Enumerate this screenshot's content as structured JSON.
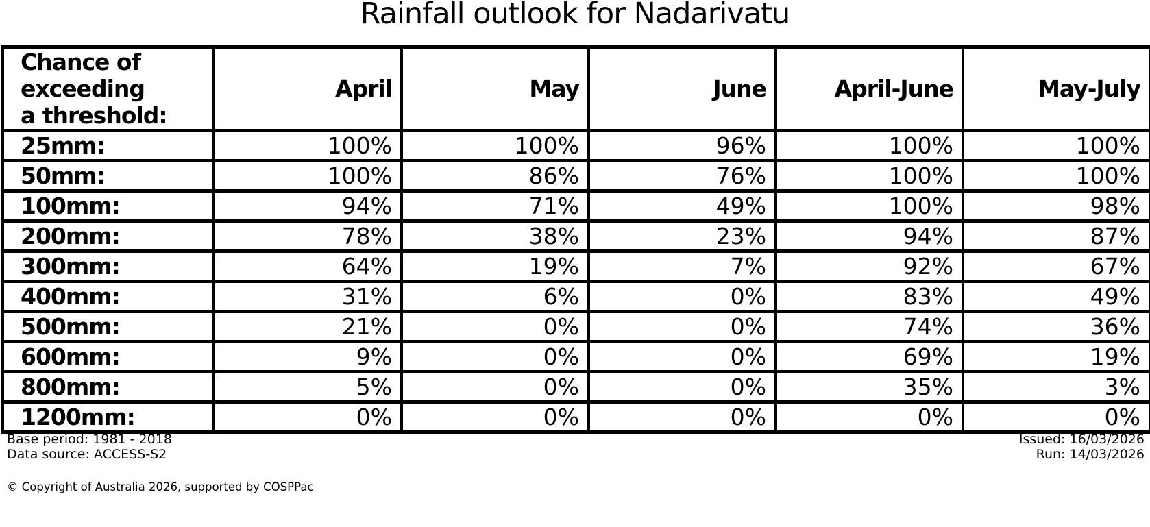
{
  "title": "Rainfall outlook for Nadarivatu",
  "chart_data": {
    "type": "table",
    "title": "Rainfall outlook for Nadarivatu",
    "corner_header": "Chance of\nexceeding\na threshold:",
    "columns": [
      "April",
      "May",
      "June",
      "April-June",
      "May-July"
    ],
    "rows": [
      {
        "threshold": "25mm:",
        "values": [
          "100%",
          "100%",
          "96%",
          "100%",
          "100%"
        ]
      },
      {
        "threshold": "50mm:",
        "values": [
          "100%",
          "86%",
          "76%",
          "100%",
          "100%"
        ]
      },
      {
        "threshold": "100mm:",
        "values": [
          "94%",
          "71%",
          "49%",
          "100%",
          "98%"
        ]
      },
      {
        "threshold": "200mm:",
        "values": [
          "78%",
          "38%",
          "23%",
          "94%",
          "87%"
        ]
      },
      {
        "threshold": "300mm:",
        "values": [
          "64%",
          "19%",
          "7%",
          "92%",
          "67%"
        ]
      },
      {
        "threshold": "400mm:",
        "values": [
          "31%",
          "6%",
          "0%",
          "83%",
          "49%"
        ]
      },
      {
        "threshold": "500mm:",
        "values": [
          "21%",
          "0%",
          "0%",
          "74%",
          "36%"
        ]
      },
      {
        "threshold": "600mm:",
        "values": [
          "9%",
          "0%",
          "0%",
          "69%",
          "19%"
        ]
      },
      {
        "threshold": "800mm:",
        "values": [
          "5%",
          "0%",
          "0%",
          "35%",
          "3%"
        ]
      },
      {
        "threshold": "1200mm:",
        "values": [
          "0%",
          "0%",
          "0%",
          "0%",
          "0%"
        ]
      }
    ]
  },
  "footer": {
    "base_period": "Base period: 1981 - 2018",
    "data_source": "Data source: ACCESS-S2",
    "issued": "Issued: 16/03/2026",
    "run": "Run: 14/03/2026",
    "copyright": "© Copyright of Australia 2026, supported by COSPPac"
  },
  "colors": {
    "text": "#000000",
    "background": "#ffffff",
    "border": "#000000"
  }
}
